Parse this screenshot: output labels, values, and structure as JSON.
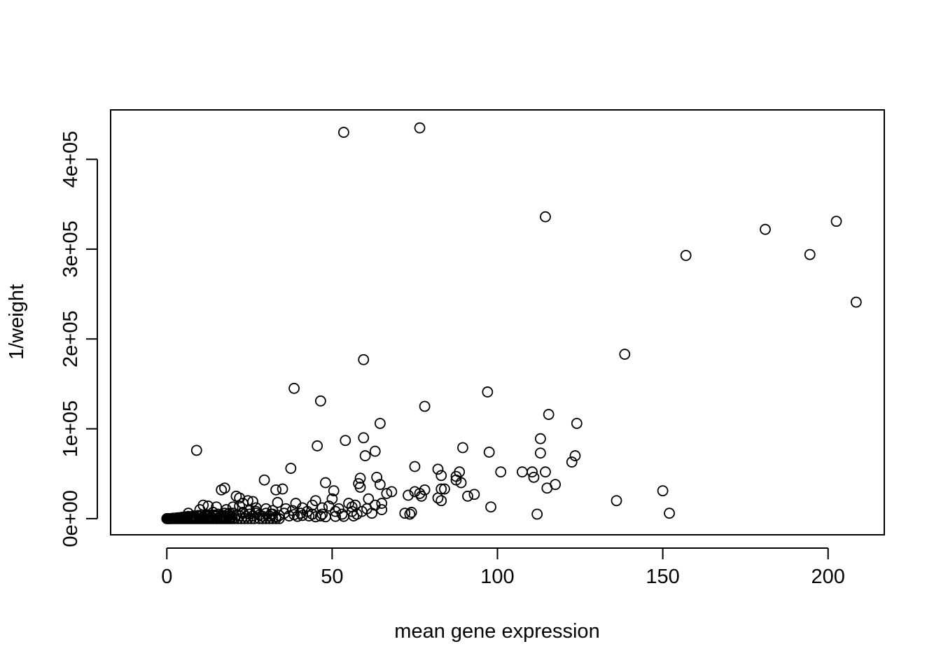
{
  "chart_data": {
    "type": "scatter",
    "title": "",
    "xlabel": "mean gene expression",
    "ylabel": "1/weight",
    "xlim": [
      -17,
      217
    ],
    "ylim": [
      -18000,
      455000
    ],
    "xticks": [
      0,
      50,
      100,
      150,
      200
    ],
    "xtick_labels": [
      "0",
      "50",
      "100",
      "150",
      "200"
    ],
    "yticks": [
      0,
      100000,
      200000,
      300000,
      400000
    ],
    "ytick_labels": [
      "0e+00",
      "1e+05",
      "2e+05",
      "3e+05",
      "4e+05"
    ],
    "grid": false,
    "legend": "none",
    "marker": "open-circle",
    "color": "#000000",
    "points": [
      [
        53.5,
        430000
      ],
      [
        76.5,
        435000
      ],
      [
        114.5,
        336000
      ],
      [
        181,
        322000
      ],
      [
        202.5,
        331000
      ],
      [
        157,
        293000
      ],
      [
        194.5,
        294000
      ],
      [
        208.5,
        241000
      ],
      [
        138.5,
        183000
      ],
      [
        59.5,
        177000
      ],
      [
        38.5,
        145000
      ],
      [
        97,
        141000
      ],
      [
        46.5,
        131000
      ],
      [
        78,
        125000
      ],
      [
        115.5,
        116000
      ],
      [
        124,
        106000
      ],
      [
        64.5,
        106000
      ],
      [
        113,
        89000
      ],
      [
        59.5,
        90000
      ],
      [
        54,
        87000
      ],
      [
        89.5,
        79000
      ],
      [
        45.5,
        81000
      ],
      [
        63,
        75000
      ],
      [
        97.5,
        74000
      ],
      [
        9,
        76000
      ],
      [
        60,
        70000
      ],
      [
        113,
        73000
      ],
      [
        123.5,
        70000
      ],
      [
        122.5,
        63000
      ],
      [
        75,
        58000
      ],
      [
        82,
        55000
      ],
      [
        37.5,
        56000
      ],
      [
        101,
        52000
      ],
      [
        88.5,
        52000
      ],
      [
        107.5,
        52000
      ],
      [
        110.5,
        52000
      ],
      [
        114.5,
        52000
      ],
      [
        83,
        48000
      ],
      [
        87.5,
        47000
      ],
      [
        111,
        46000
      ],
      [
        58.5,
        45000
      ],
      [
        63.5,
        46000
      ],
      [
        87.5,
        43000
      ],
      [
        89,
        40000
      ],
      [
        29.5,
        43000
      ],
      [
        48,
        40000
      ],
      [
        64.5,
        38000
      ],
      [
        58,
        39000
      ],
      [
        117.5,
        38000
      ],
      [
        58.5,
        35000
      ],
      [
        115,
        34000
      ],
      [
        84,
        33000
      ],
      [
        83,
        33000
      ],
      [
        78,
        32000
      ],
      [
        17.5,
        34000
      ],
      [
        16.5,
        32000
      ],
      [
        35,
        33000
      ],
      [
        33,
        32000
      ],
      [
        50.5,
        31000
      ],
      [
        68,
        30000
      ],
      [
        75,
        30000
      ],
      [
        76.5,
        28000
      ],
      [
        93,
        27000
      ],
      [
        66.5,
        28000
      ],
      [
        73,
        26000
      ],
      [
        91,
        25000
      ],
      [
        77,
        25000
      ],
      [
        82,
        23000
      ],
      [
        150,
        31000
      ],
      [
        136,
        20000
      ],
      [
        21,
        25000
      ],
      [
        22,
        23000
      ],
      [
        50,
        22000
      ],
      [
        24.5,
        20000
      ],
      [
        26,
        19000
      ],
      [
        45,
        20000
      ],
      [
        83,
        20000
      ],
      [
        61,
        22000
      ],
      [
        33.5,
        18000
      ],
      [
        23,
        17000
      ],
      [
        39,
        17000
      ],
      [
        55,
        17000
      ],
      [
        65,
        17000
      ],
      [
        57,
        15000
      ],
      [
        63,
        15000
      ],
      [
        56,
        13000
      ],
      [
        98,
        13000
      ],
      [
        49,
        14000
      ],
      [
        44,
        15000
      ],
      [
        11,
        15000
      ],
      [
        12.5,
        14000
      ],
      [
        15,
        13000
      ],
      [
        20,
        13000
      ],
      [
        22,
        14000
      ],
      [
        27,
        12000
      ],
      [
        30,
        11000
      ],
      [
        36,
        11000
      ],
      [
        41,
        12000
      ],
      [
        47,
        12000
      ],
      [
        52,
        11000
      ],
      [
        60.5,
        11000
      ],
      [
        65,
        10000
      ],
      [
        10,
        10000
      ],
      [
        18,
        10000
      ],
      [
        25,
        9000
      ],
      [
        32,
        9000
      ],
      [
        38,
        9000
      ],
      [
        42.5,
        8000
      ],
      [
        51,
        8000
      ],
      [
        56,
        8000
      ],
      [
        59,
        8000
      ],
      [
        74,
        7000
      ],
      [
        72,
        6000
      ],
      [
        73.5,
        5000
      ],
      [
        112,
        5000
      ],
      [
        152,
        6000
      ],
      [
        6.5,
        6000
      ],
      [
        14,
        7000
      ],
      [
        19,
        6000
      ],
      [
        23,
        6000
      ],
      [
        27,
        6000
      ],
      [
        31.5,
        5000
      ],
      [
        35.5,
        6000
      ],
      [
        40.5,
        6000
      ],
      [
        44,
        5000
      ],
      [
        47,
        5000
      ],
      [
        53,
        5000
      ],
      [
        57.5,
        5000
      ],
      [
        62,
        6000
      ],
      [
        1,
        0
      ],
      [
        1.5,
        200
      ],
      [
        2,
        500
      ],
      [
        2.5,
        300
      ],
      [
        3,
        800
      ],
      [
        3.5,
        1000
      ],
      [
        4,
        600
      ],
      [
        4.5,
        1500
      ],
      [
        5,
        1200
      ],
      [
        5.5,
        2000
      ],
      [
        6,
        1800
      ],
      [
        6.5,
        2500
      ],
      [
        7,
        2000
      ],
      [
        7.5,
        1500
      ],
      [
        8,
        3000
      ],
      [
        8.5,
        2200
      ],
      [
        9,
        1000
      ],
      [
        9.5,
        3500
      ],
      [
        10,
        2500
      ],
      [
        10.5,
        4000
      ],
      [
        11,
        2000
      ],
      [
        11.5,
        3000
      ],
      [
        12,
        4500
      ],
      [
        12.5,
        2800
      ],
      [
        13,
        3500
      ],
      [
        13.5,
        1500
      ],
      [
        14,
        4000
      ],
      [
        14.5,
        2500
      ],
      [
        15,
        3200
      ],
      [
        15.5,
        5000
      ],
      [
        16,
        2000
      ],
      [
        16.5,
        4000
      ],
      [
        17,
        3000
      ],
      [
        17.5,
        6000
      ],
      [
        18,
        2500
      ],
      [
        18.5,
        5000
      ],
      [
        19,
        3500
      ],
      [
        19.5,
        2000
      ],
      [
        20,
        6000
      ],
      [
        21,
        4000
      ],
      [
        22,
        3000
      ],
      [
        23,
        7000
      ],
      [
        24,
        2500
      ],
      [
        25,
        5000
      ],
      [
        26,
        3000
      ],
      [
        27,
        8000
      ],
      [
        28,
        4000
      ],
      [
        29,
        2500
      ],
      [
        30,
        6000
      ],
      [
        31,
        3000
      ],
      [
        32,
        5000
      ],
      [
        33,
        2000
      ],
      [
        34,
        3500
      ],
      [
        37,
        3000
      ],
      [
        38.5,
        4500
      ],
      [
        39.5,
        2500
      ],
      [
        41,
        3500
      ],
      [
        43,
        3000
      ],
      [
        45,
        2000
      ],
      [
        46.5,
        3000
      ],
      [
        48,
        2000
      ],
      [
        51,
        2500
      ],
      [
        53.5,
        2500
      ],
      [
        56.5,
        3000
      ],
      [
        0,
        0
      ],
      [
        0.5,
        0
      ],
      [
        0.2,
        0
      ],
      [
        0.8,
        0
      ],
      [
        1.2,
        0
      ],
      [
        1.8,
        0
      ],
      [
        2.2,
        0
      ],
      [
        2.8,
        0
      ],
      [
        3.2,
        0
      ],
      [
        3.8,
        0
      ],
      [
        4.2,
        0
      ],
      [
        4.8,
        0
      ],
      [
        5.2,
        0
      ],
      [
        5.8,
        0
      ],
      [
        6.2,
        0
      ],
      [
        6.8,
        0
      ],
      [
        7.2,
        0
      ],
      [
        7.8,
        0
      ],
      [
        8.2,
        0
      ],
      [
        8.8,
        0
      ],
      [
        9.2,
        0
      ],
      [
        9.8,
        0
      ],
      [
        10.2,
        0
      ],
      [
        10.8,
        0
      ],
      [
        11.2,
        0
      ],
      [
        11.8,
        0
      ],
      [
        12.2,
        0
      ],
      [
        12.8,
        0
      ],
      [
        13.2,
        0
      ],
      [
        13.8,
        0
      ],
      [
        14.2,
        0
      ],
      [
        14.8,
        0
      ],
      [
        15.2,
        0
      ],
      [
        15.8,
        0
      ],
      [
        16.2,
        0
      ],
      [
        16.8,
        0
      ],
      [
        17.2,
        0
      ],
      [
        17.8,
        0
      ],
      [
        18.2,
        0
      ],
      [
        18.8,
        0
      ],
      [
        19.2,
        0
      ],
      [
        19.8,
        0
      ],
      [
        20.5,
        0
      ],
      [
        21.5,
        0
      ],
      [
        22.5,
        0
      ],
      [
        23.5,
        0
      ],
      [
        24.5,
        0
      ],
      [
        25.5,
        0
      ],
      [
        26.5,
        0
      ],
      [
        28,
        0
      ],
      [
        29,
        0
      ],
      [
        30,
        0
      ],
      [
        31,
        0
      ],
      [
        32,
        0
      ],
      [
        33,
        0
      ],
      [
        34,
        0
      ]
    ]
  }
}
